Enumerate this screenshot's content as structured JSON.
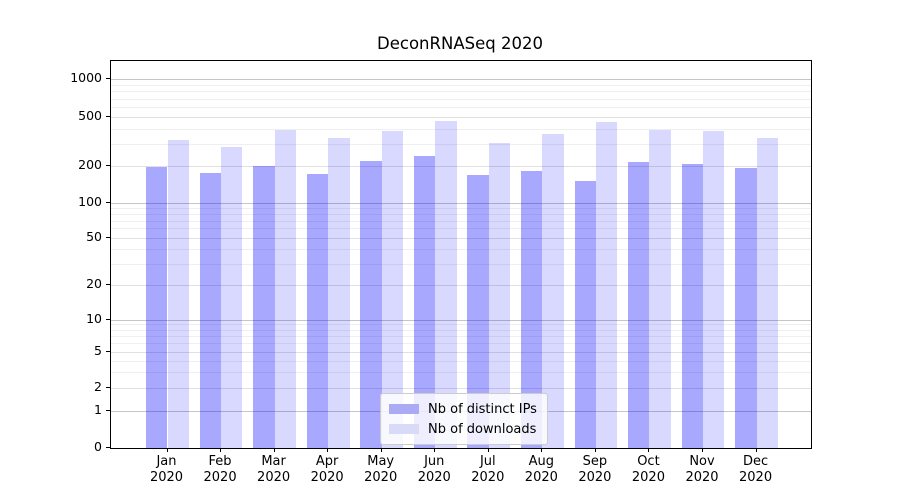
{
  "chart_data": {
    "type": "bar",
    "title": "DeconRNASeq 2020",
    "categories": [
      "Jan 2020",
      "Feb 2020",
      "Mar 2020",
      "Apr 2020",
      "May 2020",
      "Jun 2020",
      "Jul 2020",
      "Aug 2020",
      "Sep 2020",
      "Oct 2020",
      "Nov 2020",
      "Dec 2020"
    ],
    "series": [
      {
        "name": "Nb of distinct IPs",
        "color": "rgba(0,0,255,0.34)",
        "color_hex": "#aaaaf5",
        "values": [
          197,
          176,
          199,
          172,
          220,
          241,
          168,
          182,
          151,
          216,
          208,
          192
        ]
      },
      {
        "name": "Nb of downloads",
        "color": "rgba(0,0,255,0.15)",
        "color_hex": "#d9d9f8",
        "values": [
          326,
          285,
          395,
          337,
          386,
          461,
          310,
          362,
          455,
          391,
          386,
          335
        ]
      }
    ],
    "yscale": "symlog",
    "yticks": [
      0,
      1,
      2,
      5,
      10,
      20,
      50,
      100,
      200,
      500,
      1000
    ],
    "yticks_minor": [
      3,
      4,
      6,
      7,
      8,
      9,
      30,
      40,
      60,
      70,
      80,
      90,
      300,
      400,
      600,
      700,
      800,
      900
    ],
    "ylim": [
      0,
      1400
    ],
    "xlabel": "",
    "ylabel": "",
    "grid": "both",
    "legend_position": "lower center inside"
  }
}
